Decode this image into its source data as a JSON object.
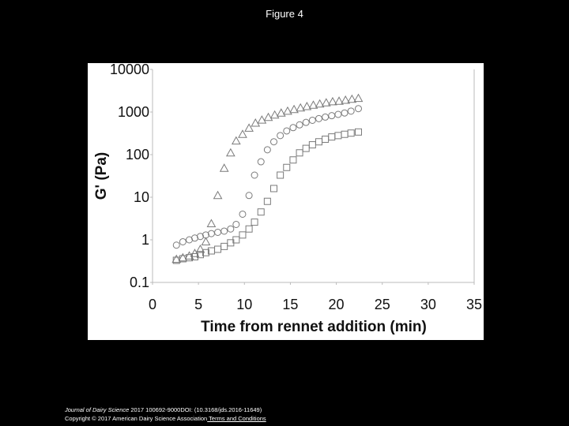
{
  "slide_title": "Figure 4",
  "chart_data": {
    "type": "scatter",
    "xlabel": "Time from rennet addition (min)",
    "ylabel": "G' (Pa)",
    "xlim": [
      0,
      35
    ],
    "xticks": [
      0,
      5,
      10,
      15,
      20,
      25,
      30,
      35
    ],
    "ylim": [
      0.1,
      10000
    ],
    "yticks": [
      0.1,
      1,
      10,
      100,
      1000,
      10000
    ],
    "ylog": true,
    "series": [
      {
        "marker": "triangle",
        "color": "#7a7a7a",
        "x": [
          2.6,
          3.3,
          4,
          4.6,
          5.2,
          5.8,
          6.4,
          7.1,
          7.8,
          8.5,
          9.1,
          9.8,
          10.5,
          11.2,
          11.9,
          12.6,
          13.3,
          14,
          14.7,
          15.4,
          16.1,
          16.8,
          17.5,
          18.2,
          18.9,
          19.6,
          20.3,
          21,
          21.7,
          22.4
        ],
        "values": [
          0.35,
          0.38,
          0.42,
          0.48,
          0.6,
          0.9,
          2.4,
          11,
          48,
          110,
          210,
          300,
          420,
          550,
          650,
          750,
          850,
          950,
          1050,
          1150,
          1250,
          1350,
          1450,
          1550,
          1650,
          1750,
          1800,
          1900,
          2000,
          2100
        ]
      },
      {
        "marker": "circle",
        "color": "#7a7a7a",
        "x": [
          2.6,
          3.3,
          4,
          4.6,
          5.2,
          5.8,
          6.4,
          7.1,
          7.8,
          8.5,
          9.1,
          9.8,
          10.5,
          11.1,
          11.8,
          12.5,
          13.2,
          13.9,
          14.6,
          15.3,
          16,
          16.7,
          17.4,
          18.1,
          18.8,
          19.5,
          20.2,
          20.9,
          21.6,
          22.4
        ],
        "values": [
          0.75,
          0.9,
          1.0,
          1.1,
          1.2,
          1.3,
          1.4,
          1.5,
          1.6,
          1.8,
          2.3,
          4,
          11,
          33,
          68,
          130,
          200,
          280,
          360,
          430,
          500,
          570,
          640,
          700,
          760,
          820,
          880,
          950,
          1050,
          1200
        ]
      },
      {
        "marker": "square",
        "color": "#7a7a7a",
        "x": [
          2.6,
          3.3,
          4,
          4.6,
          5.2,
          5.8,
          6.4,
          7.1,
          7.8,
          8.5,
          9.1,
          9.8,
          10.5,
          11.1,
          11.8,
          12.5,
          13.2,
          13.9,
          14.6,
          15.3,
          16,
          16.7,
          17.4,
          18.1,
          18.8,
          19.5,
          20.2,
          20.9,
          21.6,
          22.4
        ],
        "values": [
          0.33,
          0.36,
          0.38,
          0.4,
          0.45,
          0.5,
          0.55,
          0.6,
          0.7,
          0.85,
          1.0,
          1.3,
          1.8,
          2.6,
          4.5,
          8,
          16,
          33,
          50,
          75,
          110,
          140,
          170,
          200,
          230,
          260,
          280,
          300,
          320,
          340
        ]
      }
    ]
  },
  "footer": {
    "journal": "Journal of Dairy Science",
    "citation": " 2017 100692-9000DOI: (10.3168/jds.2016-11649)",
    "copyright": "Copyright © 2017 American Dairy Science Association",
    "terms": " Terms and Conditions"
  }
}
